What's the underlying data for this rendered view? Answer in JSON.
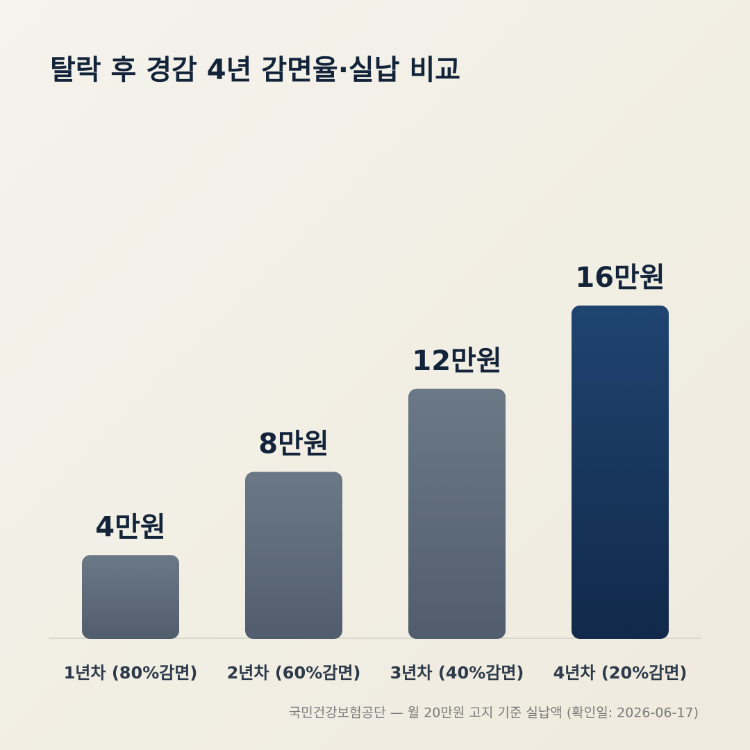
{
  "chart_data": {
    "type": "bar",
    "title": "탈락 후 경감 4년 감면율·실납 비교",
    "categories": [
      "1년차 (80%감면)",
      "2년차 (60%감면)",
      "3년차 (40%감면)",
      "4년차 (20%감면)"
    ],
    "values": [
      4,
      8,
      12,
      16
    ],
    "value_labels": [
      "4만원",
      "8만원",
      "12만원",
      "16만원"
    ],
    "colors": [
      [
        "#6b7986",
        "#515d6d"
      ],
      [
        "#6b7986",
        "#515d6d"
      ],
      [
        "#6b7986",
        "#515d6d"
      ],
      [
        "#1f4470",
        "#11294a"
      ]
    ],
    "source": "국민건강보험공단 — 월 20만원 고지 기준 실납액 (확인일: 2026-06-17)"
  }
}
